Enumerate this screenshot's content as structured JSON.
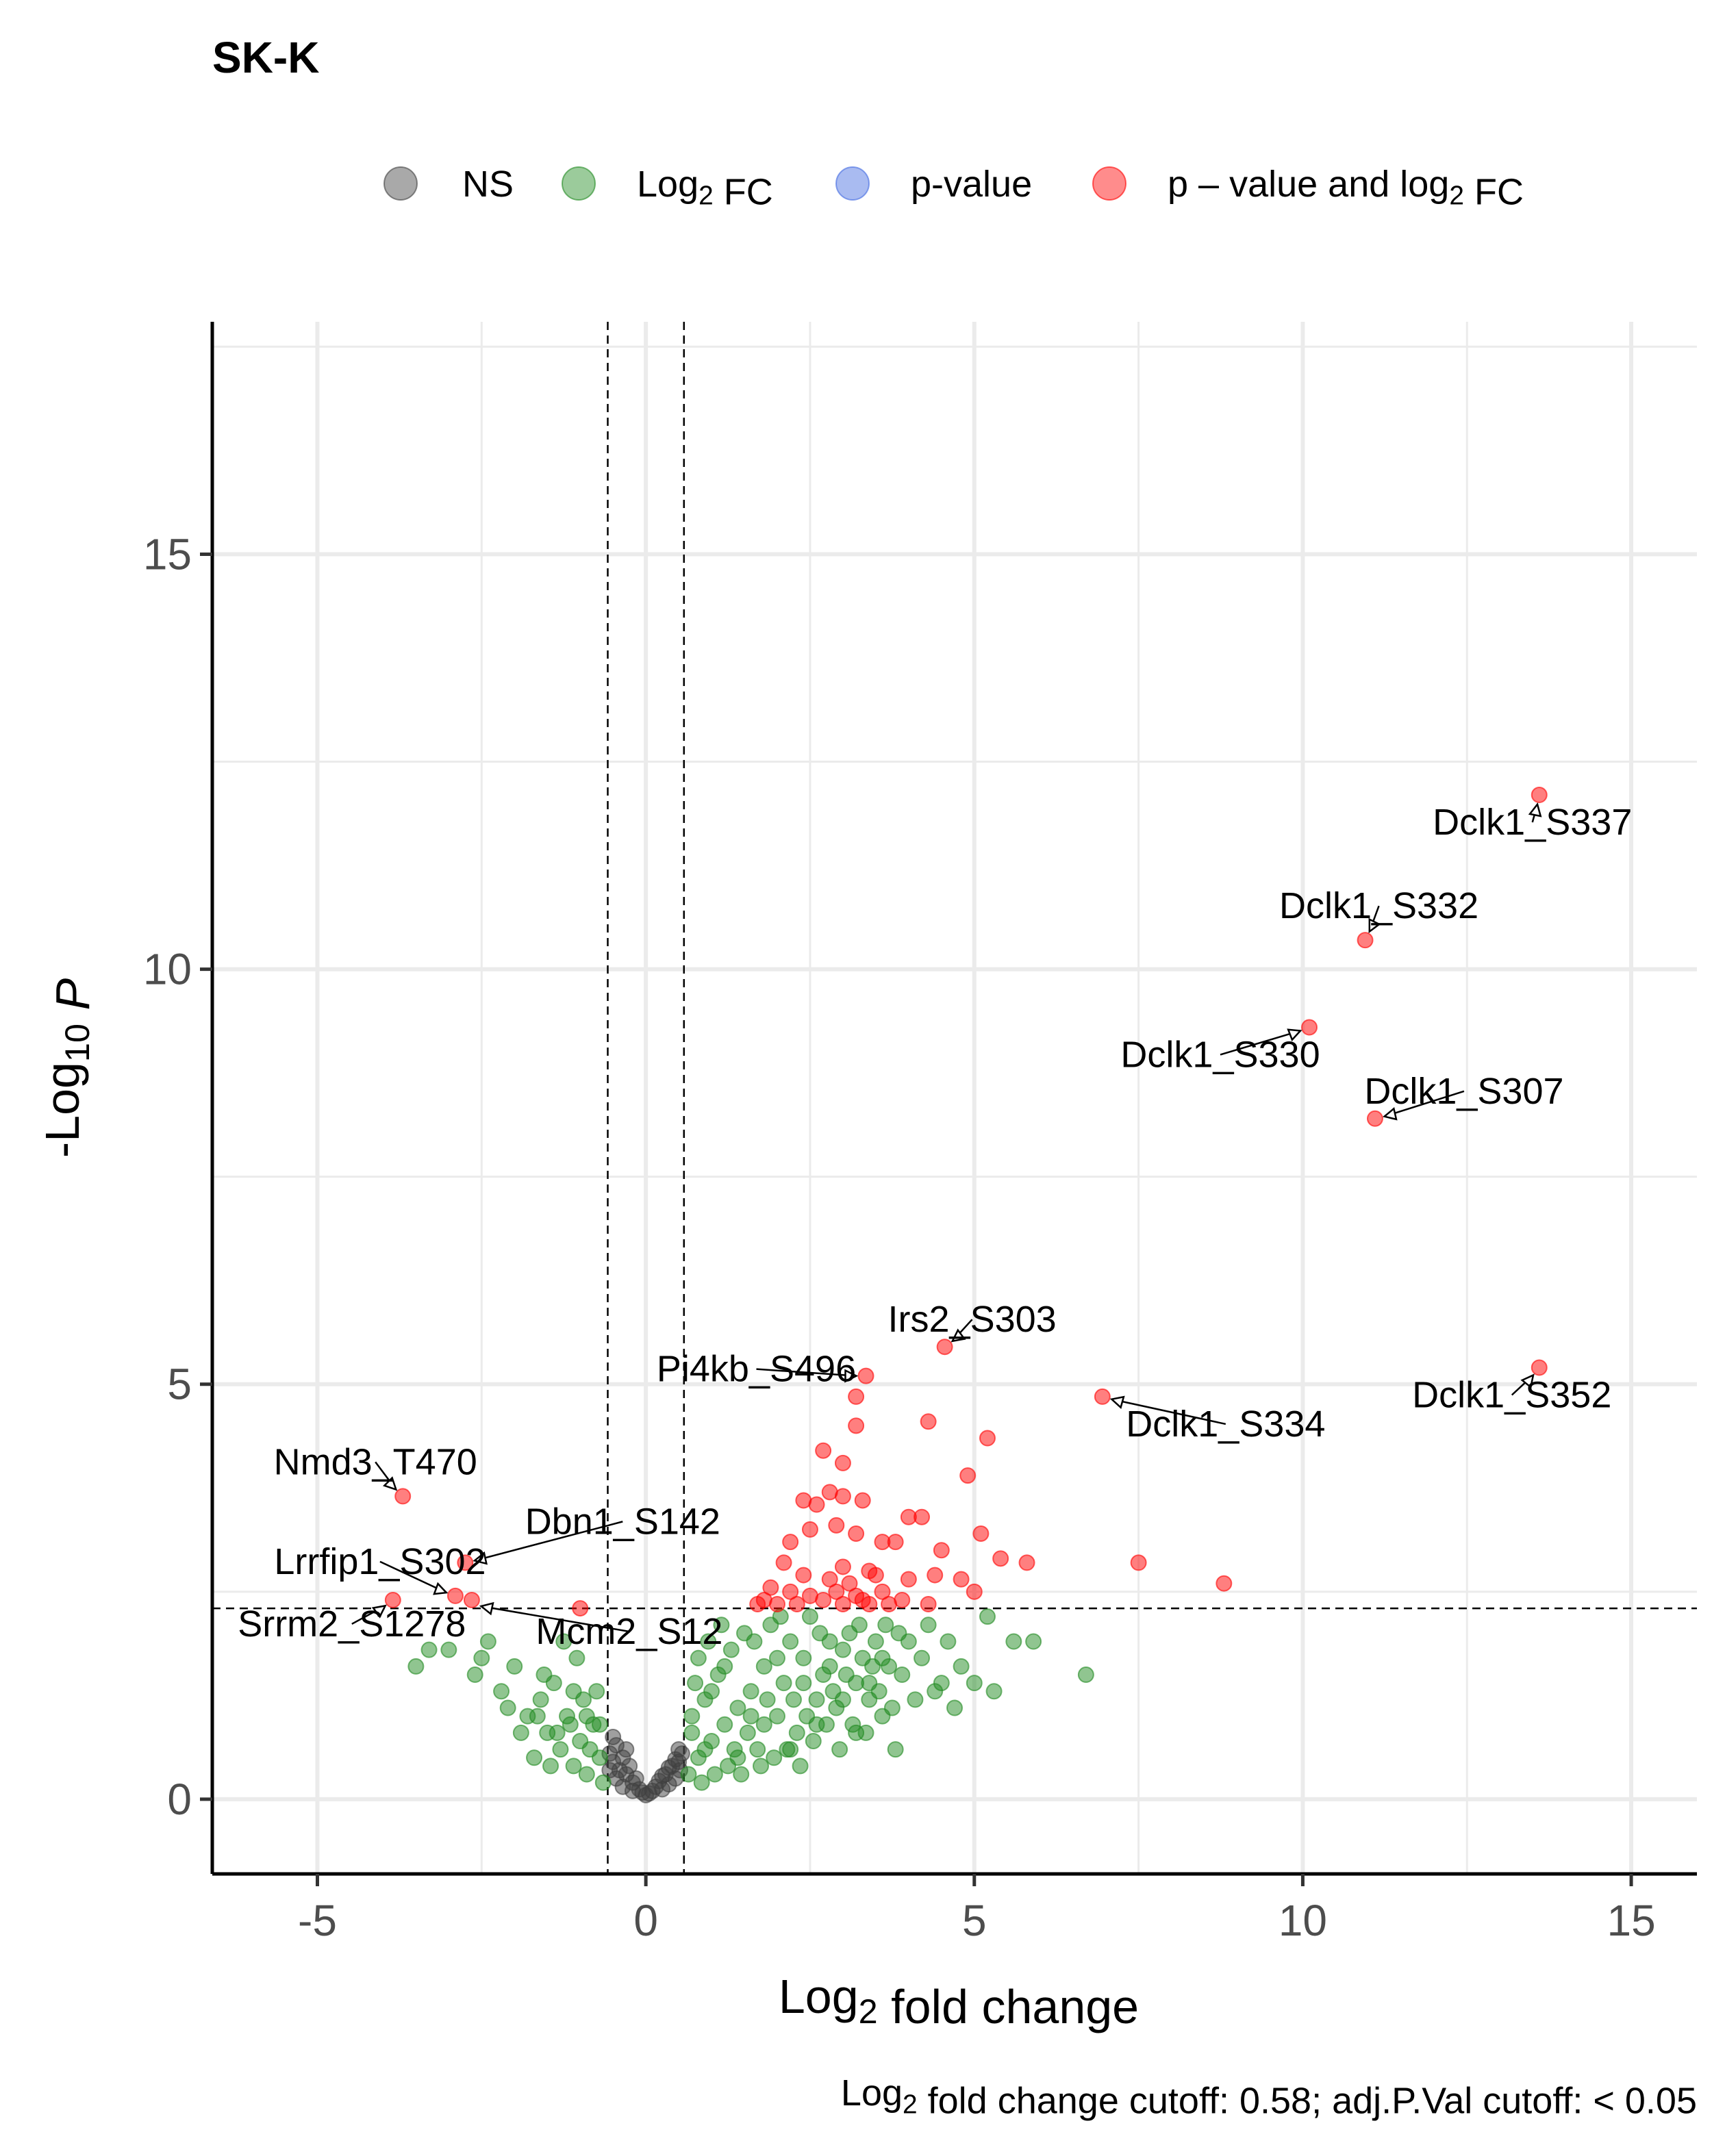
{
  "chart_data": {
    "type": "scatter",
    "title": "SK-K",
    "xlabel": "Log2 fold change",
    "ylabel": "-Log10 P",
    "caption": "Log2 fold change cutoff: 0.58; adj.P.Val cutoff: < 0.05",
    "xlim": [
      -6.6,
      16
    ],
    "ylim": [
      -0.9,
      17.8
    ],
    "xticks": [
      -5,
      0,
      5,
      10,
      15
    ],
    "yticks": [
      0,
      5,
      10,
      15
    ],
    "cutoffs": {
      "fc": 0.58,
      "p_line": 2.3
    },
    "grid": true,
    "legend_position": "top",
    "legend": [
      {
        "label": "NS",
        "color": "#404040"
      },
      {
        "label": "Log2 FC",
        "color": "#228B22"
      },
      {
        "label": "p-value",
        "color": "#4169E1"
      },
      {
        "label": "p – value and log2 FC",
        "color": "#FF0000"
      }
    ],
    "labels": [
      {
        "text": "Dclk1_S337",
        "x": 13.6,
        "y": 12.1
      },
      {
        "text": "Dclk1_S332",
        "x": 10.95,
        "y": 10.35
      },
      {
        "text": "Dclk1_S330",
        "x": 10.1,
        "y": 9.3
      },
      {
        "text": "Dclk1_S307",
        "x": 11.1,
        "y": 8.2
      },
      {
        "text": "Irs2_S303",
        "x": 4.55,
        "y": 5.45
      },
      {
        "text": "Pi4kb_S496",
        "x": 3.35,
        "y": 5.1
      },
      {
        "text": "Dclk1_S352",
        "x": 13.6,
        "y": 5.2
      },
      {
        "text": "Dclk1_S334",
        "x": 6.95,
        "y": 4.85
      },
      {
        "text": "Nmd3_T470",
        "x": -3.7,
        "y": 3.65
      },
      {
        "text": "Dbn1_S142",
        "x": -2.75,
        "y": 2.85
      },
      {
        "text": "Lrrfip1_S302",
        "x": -2.9,
        "y": 2.45
      },
      {
        "text": "Srrm2_S1278",
        "x": -3.85,
        "y": 2.4
      },
      {
        "text": "Mcm2_S12",
        "x": -2.65,
        "y": 2.35
      }
    ],
    "series": [
      {
        "name": "NS",
        "points": [
          [
            -0.55,
            0.55
          ],
          [
            -0.5,
            0.45
          ],
          [
            -0.45,
            0.65
          ],
          [
            -0.4,
            0.35
          ],
          [
            -0.35,
            0.5
          ],
          [
            -0.3,
            0.3
          ],
          [
            -0.25,
            0.4
          ],
          [
            -0.2,
            0.2
          ],
          [
            -0.15,
            0.25
          ],
          [
            -0.1,
            0.12
          ],
          [
            -0.05,
            0.08
          ],
          [
            0.0,
            0.05
          ],
          [
            0.05,
            0.07
          ],
          [
            0.1,
            0.1
          ],
          [
            0.15,
            0.15
          ],
          [
            0.2,
            0.22
          ],
          [
            0.25,
            0.28
          ],
          [
            0.3,
            0.3
          ],
          [
            0.35,
            0.38
          ],
          [
            0.4,
            0.4
          ],
          [
            0.45,
            0.48
          ],
          [
            0.5,
            0.45
          ],
          [
            0.55,
            0.55
          ],
          [
            -0.5,
            0.75
          ],
          [
            -0.45,
            0.25
          ],
          [
            -0.35,
            0.15
          ],
          [
            -0.3,
            0.6
          ],
          [
            0.35,
            0.18
          ],
          [
            0.45,
            0.25
          ],
          [
            0.5,
            0.6
          ],
          [
            -0.55,
            0.35
          ],
          [
            0.52,
            0.35
          ],
          [
            -0.2,
            0.1
          ],
          [
            0.25,
            0.12
          ]
        ]
      },
      {
        "name": "Log2 FC",
        "points": [
          [
            -3.0,
            1.8
          ],
          [
            -2.6,
            1.5
          ],
          [
            -2.4,
            1.9
          ],
          [
            -2.2,
            1.3
          ],
          [
            -2.0,
            1.6
          ],
          [
            -1.8,
            1.0
          ],
          [
            -1.6,
            1.2
          ],
          [
            -1.5,
            0.8
          ],
          [
            -1.4,
            1.4
          ],
          [
            -1.3,
            0.6
          ],
          [
            -1.2,
            1.0
          ],
          [
            -1.1,
            0.4
          ],
          [
            -1.0,
            0.7
          ],
          [
            -0.9,
            0.3
          ],
          [
            -0.8,
            0.9
          ],
          [
            -0.7,
            0.5
          ],
          [
            -0.65,
            0.2
          ],
          [
            -1.7,
            0.5
          ],
          [
            -1.9,
            0.8
          ],
          [
            -2.1,
            1.1
          ],
          [
            -2.5,
            1.7
          ],
          [
            -3.3,
            1.8
          ],
          [
            -3.5,
            1.6
          ],
          [
            -1.05,
            1.7
          ],
          [
            -1.25,
            1.9
          ],
          [
            0.65,
            0.3
          ],
          [
            0.7,
            0.8
          ],
          [
            0.8,
            0.5
          ],
          [
            0.9,
            1.2
          ],
          [
            1.0,
            0.7
          ],
          [
            1.1,
            1.5
          ],
          [
            1.2,
            0.9
          ],
          [
            1.3,
            1.8
          ],
          [
            1.4,
            1.1
          ],
          [
            1.5,
            2.0
          ],
          [
            1.6,
            1.3
          ],
          [
            1.7,
            0.6
          ],
          [
            1.8,
            1.6
          ],
          [
            1.9,
            2.1
          ],
          [
            2.0,
            1.0
          ],
          [
            2.1,
            1.4
          ],
          [
            2.2,
            1.9
          ],
          [
            2.3,
            0.8
          ],
          [
            2.4,
            1.7
          ],
          [
            2.5,
            2.2
          ],
          [
            2.6,
            1.2
          ],
          [
            2.7,
            1.5
          ],
          [
            2.8,
            1.9
          ],
          [
            2.9,
            1.1
          ],
          [
            3.0,
            1.8
          ],
          [
            3.1,
            2.0
          ],
          [
            3.2,
            1.4
          ],
          [
            3.3,
            1.7
          ],
          [
            3.4,
            1.2
          ],
          [
            3.5,
            1.9
          ],
          [
            3.6,
            1.0
          ],
          [
            3.7,
            1.6
          ],
          [
            3.8,
            0.6
          ],
          [
            3.9,
            1.5
          ],
          [
            4.0,
            1.9
          ],
          [
            4.2,
            1.7
          ],
          [
            4.4,
            1.3
          ],
          [
            4.6,
            1.9
          ],
          [
            4.8,
            1.6
          ],
          [
            5.0,
            1.4
          ],
          [
            5.2,
            2.2
          ],
          [
            5.3,
            1.3
          ],
          [
            5.6,
            1.9
          ],
          [
            5.9,
            1.9
          ],
          [
            6.7,
            1.5
          ],
          [
            0.75,
            1.4
          ],
          [
            0.85,
            0.2
          ],
          [
            0.95,
            1.9
          ],
          [
            1.05,
            0.3
          ],
          [
            1.15,
            2.1
          ],
          [
            1.25,
            0.4
          ],
          [
            1.35,
            0.6
          ],
          [
            1.45,
            0.3
          ],
          [
            1.55,
            0.8
          ],
          [
            1.65,
            1.9
          ],
          [
            1.75,
            0.4
          ],
          [
            1.85,
            1.2
          ],
          [
            1.95,
            0.5
          ],
          [
            2.05,
            2.2
          ],
          [
            2.15,
            0.6
          ],
          [
            2.25,
            1.2
          ],
          [
            2.35,
            0.4
          ],
          [
            2.45,
            1.0
          ],
          [
            2.55,
            0.7
          ],
          [
            2.65,
            2.0
          ],
          [
            2.75,
            0.9
          ],
          [
            2.85,
            1.3
          ],
          [
            2.95,
            0.6
          ],
          [
            3.05,
            1.5
          ],
          [
            3.15,
            0.9
          ],
          [
            3.25,
            2.1
          ],
          [
            3.35,
            0.8
          ],
          [
            3.45,
            1.6
          ],
          [
            3.55,
            1.3
          ],
          [
            3.65,
            2.1
          ],
          [
            3.75,
            1.1
          ],
          [
            3.85,
            2.0
          ],
          [
            4.1,
            1.2
          ],
          [
            4.3,
            2.1
          ],
          [
            4.5,
            1.4
          ],
          [
            4.7,
            1.1
          ],
          [
            0.7,
            1.0
          ],
          [
            0.8,
            1.7
          ],
          [
            0.9,
            0.6
          ],
          [
            1.0,
            1.3
          ],
          [
            1.2,
            1.6
          ],
          [
            1.4,
            0.5
          ],
          [
            1.6,
            1.0
          ],
          [
            1.8,
            0.9
          ],
          [
            2.0,
            1.7
          ],
          [
            2.2,
            0.6
          ],
          [
            2.4,
            1.4
          ],
          [
            2.6,
            0.9
          ],
          [
            2.8,
            1.6
          ],
          [
            3.0,
            1.2
          ],
          [
            3.2,
            0.8
          ],
          [
            3.4,
            1.4
          ],
          [
            3.6,
            1.7
          ],
          [
            -0.75,
            1.3
          ],
          [
            -0.85,
            0.6
          ],
          [
            -0.95,
            1.2
          ],
          [
            -1.15,
            0.9
          ],
          [
            -1.35,
            0.8
          ],
          [
            -1.55,
            1.5
          ],
          [
            -1.45,
            0.4
          ],
          [
            -1.65,
            1.0
          ],
          [
            -0.7,
            0.9
          ],
          [
            -0.9,
            1.0
          ],
          [
            -1.1,
            1.3
          ]
        ]
      },
      {
        "name": "p-value",
        "points": []
      },
      {
        "name": "p – value and log2 FC",
        "points": [
          [
            13.6,
            12.1
          ],
          [
            10.95,
            10.35
          ],
          [
            10.1,
            9.3
          ],
          [
            11.1,
            8.2
          ],
          [
            4.55,
            5.45
          ],
          [
            3.35,
            5.1
          ],
          [
            13.6,
            5.2
          ],
          [
            6.95,
            4.85
          ],
          [
            3.2,
            4.85
          ],
          [
            3.2,
            4.5
          ],
          [
            4.3,
            4.55
          ],
          [
            5.2,
            4.35
          ],
          [
            2.7,
            4.2
          ],
          [
            3.0,
            4.05
          ],
          [
            4.9,
            3.9
          ],
          [
            2.8,
            3.7
          ],
          [
            3.0,
            3.65
          ],
          [
            2.4,
            3.6
          ],
          [
            2.6,
            3.55
          ],
          [
            3.3,
            3.6
          ],
          [
            -3.7,
            3.65
          ],
          [
            4.0,
            3.4
          ],
          [
            4.2,
            3.4
          ],
          [
            2.9,
            3.3
          ],
          [
            2.5,
            3.25
          ],
          [
            3.2,
            3.2
          ],
          [
            3.6,
            3.1
          ],
          [
            5.1,
            3.2
          ],
          [
            2.2,
            3.1
          ],
          [
            3.8,
            3.1
          ],
          [
            4.5,
            3.0
          ],
          [
            5.4,
            2.9
          ],
          [
            5.8,
            2.85
          ],
          [
            7.5,
            2.85
          ],
          [
            3.0,
            2.8
          ],
          [
            3.4,
            2.75
          ],
          [
            2.1,
            2.85
          ],
          [
            2.4,
            2.7
          ],
          [
            2.8,
            2.65
          ],
          [
            3.1,
            2.6
          ],
          [
            3.5,
            2.7
          ],
          [
            4.0,
            2.65
          ],
          [
            4.4,
            2.7
          ],
          [
            4.8,
            2.65
          ],
          [
            5.0,
            2.5
          ],
          [
            8.8,
            2.6
          ],
          [
            1.9,
            2.55
          ],
          [
            2.2,
            2.5
          ],
          [
            2.5,
            2.45
          ],
          [
            2.7,
            2.4
          ],
          [
            3.0,
            2.35
          ],
          [
            3.3,
            2.4
          ],
          [
            3.6,
            2.5
          ],
          [
            3.9,
            2.4
          ],
          [
            1.8,
            2.4
          ],
          [
            2.0,
            2.35
          ],
          [
            2.3,
            2.35
          ],
          [
            2.9,
            2.5
          ],
          [
            3.2,
            2.45
          ],
          [
            3.4,
            2.35
          ],
          [
            3.7,
            2.35
          ],
          [
            4.3,
            2.35
          ],
          [
            -2.75,
            2.85
          ],
          [
            -2.9,
            2.45
          ],
          [
            -3.85,
            2.4
          ],
          [
            -2.65,
            2.4
          ],
          [
            -1.0,
            2.3
          ],
          [
            1.7,
            2.35
          ]
        ]
      }
    ]
  }
}
